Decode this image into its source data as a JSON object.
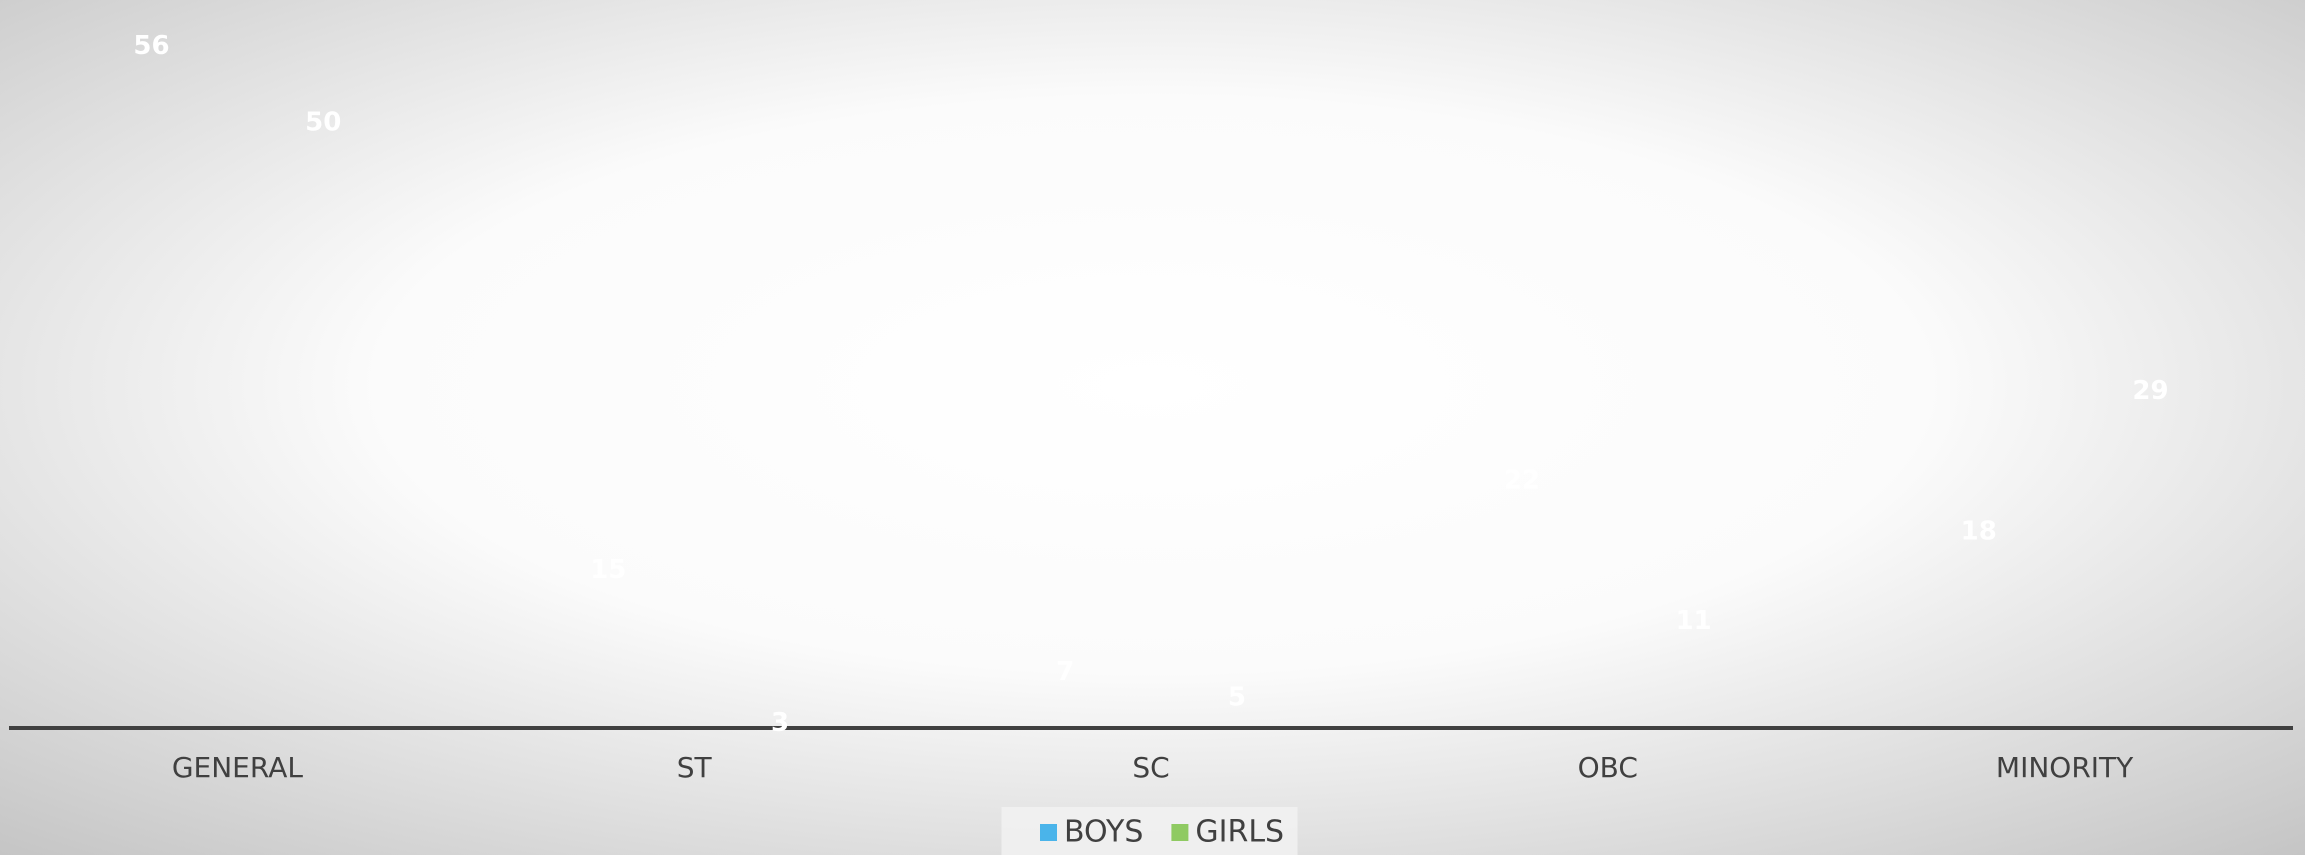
{
  "chart_data": {
    "type": "bar",
    "categories": [
      "GENERAL",
      "ST",
      "SC",
      "OBC",
      "MINORITY"
    ],
    "series": [
      {
        "name": "BOYS",
        "color": "#4ab4ea",
        "values": [
          56,
          15,
          7,
          22,
          18
        ]
      },
      {
        "name": "GIRLS",
        "color": "#8fca62",
        "values": [
          50,
          3,
          5,
          11,
          29
        ]
      }
    ],
    "ylim": [
      0,
      56.5
    ],
    "yticks": [
      0,
      10,
      20,
      30,
      40,
      50
    ],
    "grid": true,
    "legend": "bottom"
  }
}
